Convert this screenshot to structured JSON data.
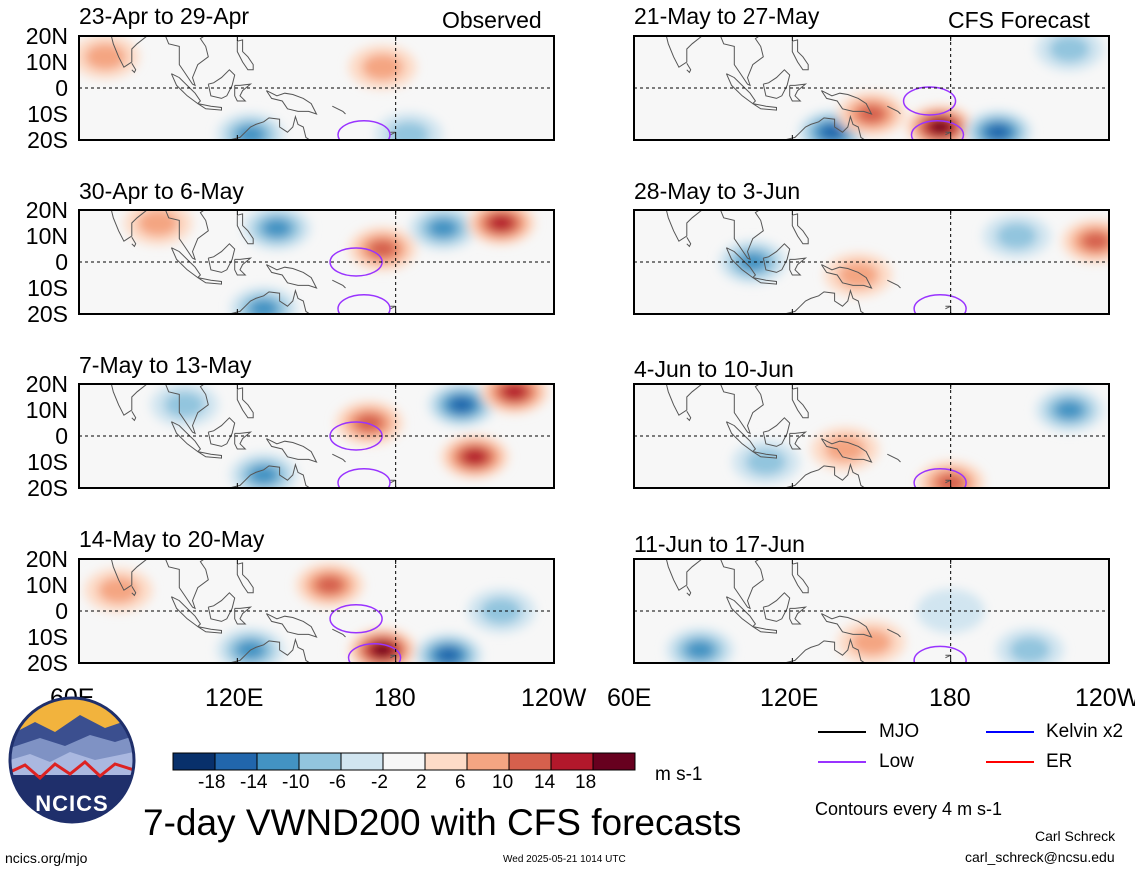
{
  "header": {
    "observed_label": "Observed",
    "forecast_label": "CFS Forecast"
  },
  "panels": [
    {
      "title": "23-Apr to 29-Apr"
    },
    {
      "title": "30-Apr to 6-May"
    },
    {
      "title": "7-May to 13-May"
    },
    {
      "title": "14-May to 20-May"
    },
    {
      "title": "21-May to 27-May"
    },
    {
      "title": "28-May to 3-Jun"
    },
    {
      "title": "4-Jun to 10-Jun"
    },
    {
      "title": "11-Jun to 17-Jun"
    }
  ],
  "chart_data": {
    "type": "heatmap",
    "title": "7-day VWND200 with CFS forecasts",
    "units": "m s-1",
    "x_ticks": [
      "60E",
      "120E",
      "180",
      "120W"
    ],
    "y_ticks": [
      "20N",
      "10N",
      "0",
      "10S",
      "20S"
    ],
    "x_range_deg_east": [
      60,
      240
    ],
    "y_range_deg": [
      -20,
      20
    ],
    "colorbar": {
      "labels": [
        "-18",
        "-14",
        "-10",
        "-6",
        "-2",
        "2",
        "6",
        "10",
        "14",
        "18"
      ],
      "colors": [
        "#08306b",
        "#2166ac",
        "#4393c3",
        "#92c5de",
        "#d1e5f0",
        "#f7f7f7",
        "#fddbc7",
        "#f4a582",
        "#d6604d",
        "#b2182b",
        "#67001f"
      ]
    },
    "legend": [
      {
        "label": "MJO",
        "color": "#000000"
      },
      {
        "label": "Kelvin x2",
        "color": "#0000ff"
      },
      {
        "label": "Low",
        "color": "#9933ff"
      },
      {
        "label": "ER",
        "color": "#ff0000"
      }
    ],
    "contour_note": "Contours every 4 m s-1",
    "features": [
      {
        "panel": 0,
        "anomalies": [
          {
            "lon": 185,
            "lat": -18,
            "sign": -1,
            "mag": 6
          },
          {
            "lon": 125,
            "lat": -18,
            "sign": -1,
            "mag": 10
          },
          {
            "lon": 70,
            "lat": 12,
            "sign": 1,
            "mag": 5
          },
          {
            "lon": 175,
            "lat": 8,
            "sign": 1,
            "mag": 5
          }
        ],
        "low": [
          {
            "lon": 168,
            "lat": -18
          }
        ]
      },
      {
        "panel": 1,
        "anomalies": [
          {
            "lon": 135,
            "lat": 13,
            "sign": -1,
            "mag": 10
          },
          {
            "lon": 198,
            "lat": 13,
            "sign": -1,
            "mag": 10
          },
          {
            "lon": 220,
            "lat": 15,
            "sign": 1,
            "mag": 14
          },
          {
            "lon": 175,
            "lat": 5,
            "sign": 1,
            "mag": 8
          },
          {
            "lon": 130,
            "lat": -18,
            "sign": -1,
            "mag": 10
          },
          {
            "lon": 90,
            "lat": 15,
            "sign": 1,
            "mag": 6
          }
        ],
        "low": [
          {
            "lon": 165,
            "lat": 0
          },
          {
            "lon": 168,
            "lat": -18
          }
        ]
      },
      {
        "panel": 2,
        "anomalies": [
          {
            "lon": 205,
            "lat": 12,
            "sign": -1,
            "mag": 14
          },
          {
            "lon": 225,
            "lat": 17,
            "sign": 1,
            "mag": 12
          },
          {
            "lon": 210,
            "lat": -8,
            "sign": 1,
            "mag": 12
          },
          {
            "lon": 170,
            "lat": 5,
            "sign": 1,
            "mag": 8
          },
          {
            "lon": 130,
            "lat": -15,
            "sign": -1,
            "mag": 10
          },
          {
            "lon": 100,
            "lat": 12,
            "sign": -1,
            "mag": 6
          }
        ],
        "low": [
          {
            "lon": 165,
            "lat": 0
          },
          {
            "lon": 168,
            "lat": -18
          }
        ]
      },
      {
        "panel": 3,
        "anomalies": [
          {
            "lon": 175,
            "lat": -15,
            "sign": 1,
            "mag": 16
          },
          {
            "lon": 200,
            "lat": -17,
            "sign": -1,
            "mag": 14
          },
          {
            "lon": 155,
            "lat": 10,
            "sign": 1,
            "mag": 8
          },
          {
            "lon": 125,
            "lat": -15,
            "sign": -1,
            "mag": 10
          },
          {
            "lon": 220,
            "lat": 0,
            "sign": -1,
            "mag": 6
          },
          {
            "lon": 75,
            "lat": 8,
            "sign": 1,
            "mag": 6
          }
        ],
        "low": [
          {
            "lon": 165,
            "lat": -3
          },
          {
            "lon": 172,
            "lat": -18
          }
        ]
      },
      {
        "panel": 4,
        "anomalies": [
          {
            "lon": 176,
            "lat": -15,
            "sign": 1,
            "mag": 20
          },
          {
            "lon": 198,
            "lat": -17,
            "sign": -1,
            "mag": 12
          },
          {
            "lon": 135,
            "lat": -17,
            "sign": -1,
            "mag": 14
          },
          {
            "lon": 150,
            "lat": -10,
            "sign": 1,
            "mag": 8
          },
          {
            "lon": 225,
            "lat": 15,
            "sign": -1,
            "mag": 6
          }
        ],
        "low": [
          {
            "lon": 172,
            "lat": -5
          },
          {
            "lon": 175,
            "lat": -18
          }
        ]
      },
      {
        "panel": 5,
        "anomalies": [
          {
            "lon": 105,
            "lat": 0,
            "sign": -1,
            "mag": 8
          },
          {
            "lon": 145,
            "lat": -5,
            "sign": 1,
            "mag": 6
          },
          {
            "lon": 235,
            "lat": 8,
            "sign": 1,
            "mag": 8
          },
          {
            "lon": 205,
            "lat": 10,
            "sign": -1,
            "mag": 4
          }
        ],
        "low": [
          {
            "lon": 176,
            "lat": -18
          }
        ]
      },
      {
        "panel": 6,
        "anomalies": [
          {
            "lon": 225,
            "lat": 10,
            "sign": -1,
            "mag": 8
          },
          {
            "lon": 180,
            "lat": -18,
            "sign": 1,
            "mag": 8
          },
          {
            "lon": 110,
            "lat": -10,
            "sign": -1,
            "mag": 4
          },
          {
            "lon": 140,
            "lat": -5,
            "sign": 1,
            "mag": 4
          }
        ],
        "low": [
          {
            "lon": 176,
            "lat": -18
          }
        ]
      },
      {
        "panel": 7,
        "anomalies": [
          {
            "lon": 85,
            "lat": -15,
            "sign": -1,
            "mag": 8
          },
          {
            "lon": 150,
            "lat": -12,
            "sign": 1,
            "mag": 5
          },
          {
            "lon": 210,
            "lat": -15,
            "sign": -1,
            "mag": 5
          },
          {
            "lon": 180,
            "lat": 0,
            "sign": -1,
            "mag": 3
          }
        ],
        "low": [
          {
            "lon": 176,
            "lat": -19
          }
        ]
      }
    ]
  },
  "legend_labels": {
    "mjo": "MJO",
    "kelvin": "Kelvin x2",
    "low": "Low",
    "er": "ER"
  },
  "colorbar_units": "m s-1",
  "contour_note": "Contours every 4 m s-1",
  "logo_text": "NCICS",
  "main_title": "7-day VWND200 with CFS forecasts",
  "author": "Carl Schreck",
  "email": "carl_schreck@ncsu.edu",
  "site": "ncics.org/mjo",
  "timestamp": "Wed 2025-05-21 1014 UTC"
}
